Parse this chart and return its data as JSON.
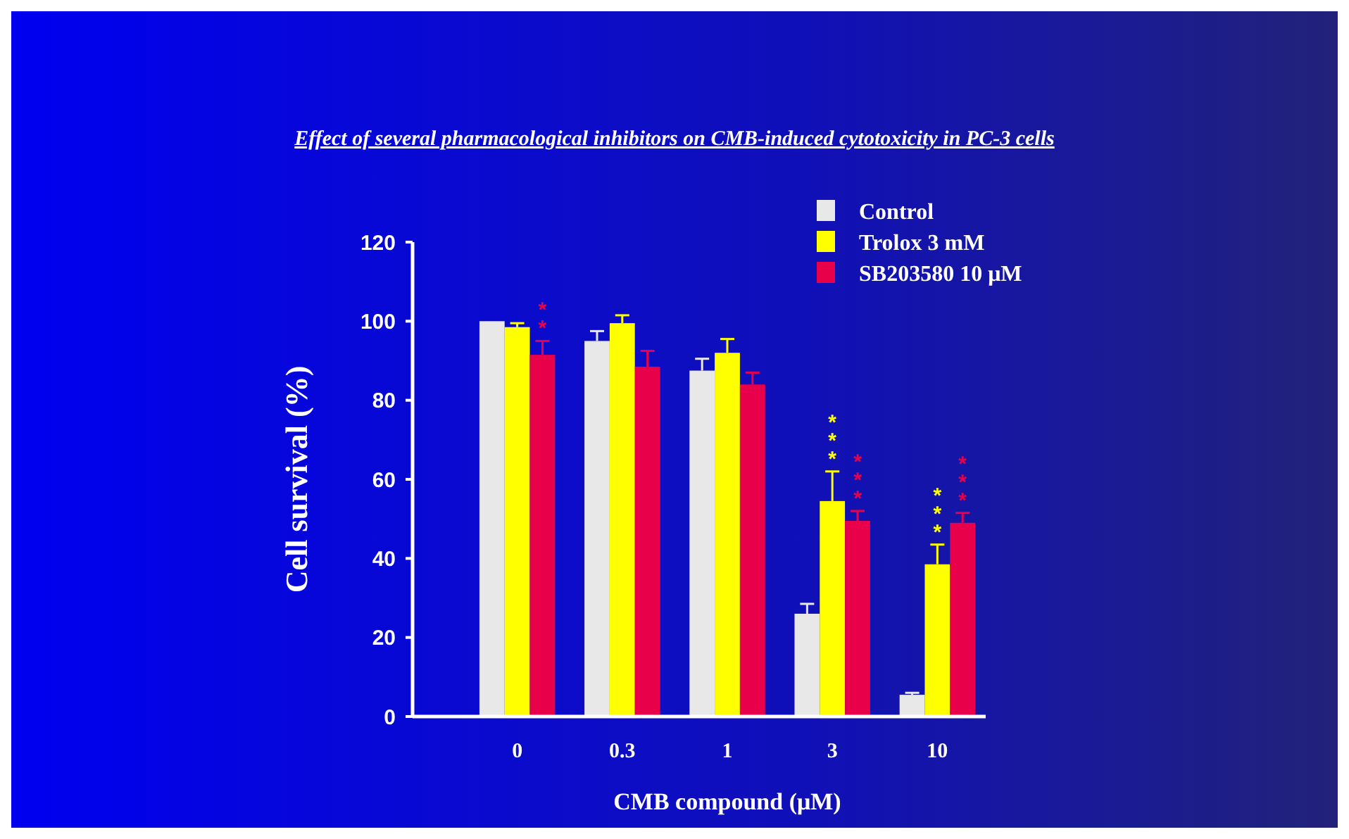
{
  "chart_data": {
    "type": "bar",
    "title": "Effect of several pharmacological inhibitors on CMB-induced cytotoxicity in PC-3 cells",
    "xlabel": "CMB compound (μM)",
    "ylabel": "Cell survival (%)",
    "categories": [
      "0",
      "0.3",
      "1",
      "3",
      "10"
    ],
    "series": [
      {
        "name": "Control",
        "color": "#e8e8e8",
        "values": [
          100,
          95,
          87.5,
          26,
          5.5
        ],
        "errors": [
          0,
          2.5,
          3,
          2.5,
          0.5
        ]
      },
      {
        "name": "Trolox 3 mM",
        "color": "#ffff00",
        "values": [
          98.5,
          99.5,
          92,
          54.5,
          38.5
        ],
        "errors": [
          1,
          2,
          3.5,
          7.5,
          5
        ],
        "value_labels": [
          null,
          null,
          null,
          "***",
          "***"
        ]
      },
      {
        "name": "SB203580 10 μM",
        "color": "#e8004a",
        "values": [
          91.5,
          88.5,
          84,
          49.5,
          49
        ],
        "errors": [
          3.5,
          4,
          3,
          2.5,
          2.5
        ],
        "value_labels": [
          "**",
          null,
          null,
          "***",
          "***"
        ]
      }
    ],
    "ylim": [
      0,
      120
    ],
    "yticks": [
      0,
      20,
      40,
      60,
      80,
      100,
      120
    ],
    "grid": false,
    "legend": "top right"
  }
}
